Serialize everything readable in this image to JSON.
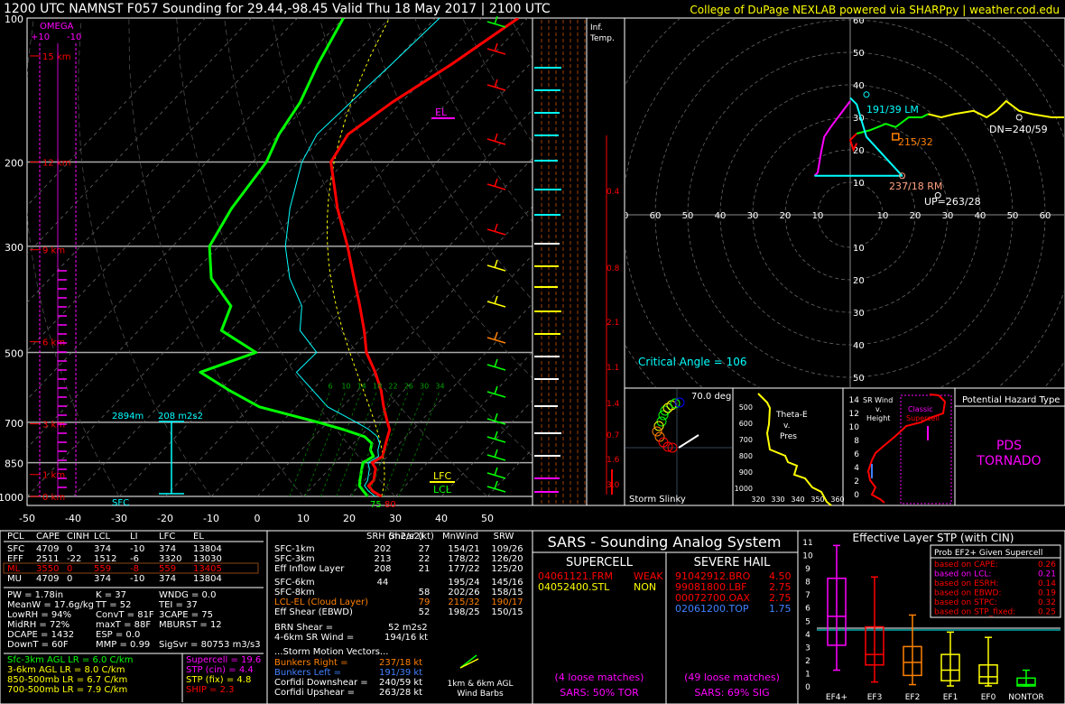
{
  "header": {
    "title": "1200 UTC NAMNST F057 Sounding for 29.44,-98.45 Valid  Thu 18 May 2017 | 2100 UTC",
    "credit": "College of DuPage NEXLAB powered via SHARPpy | weather.cod.edu"
  },
  "skewt": {
    "pressure_labels": [
      "100",
      "200",
      "300",
      "500",
      "700",
      "850",
      "1000"
    ],
    "temp_labels": [
      "-50",
      "-40",
      "-30",
      "-20",
      "-10",
      "0",
      "10",
      "20",
      "30",
      "40",
      "50"
    ],
    "height_labels": [
      "15 km",
      "12 km",
      "9 km",
      "6 km",
      "3 km",
      "1 km",
      "0 km"
    ],
    "omega_title": "OMEGA",
    "omega_plus": "+10",
    "omega_minus": "-10",
    "el_label": "EL",
    "lfc_label": "LFC",
    "lcl_label": "LCL",
    "sfc_label": "SFC",
    "eff_inflow_bottom": "2894m",
    "eff_inflow_srh": "208 m2s2",
    "sfc_temp": "80",
    "sfc_dew": "75",
    "mixing_ratios": [
      "6",
      "10",
      "14",
      "18",
      "22",
      "26",
      "30",
      "34"
    ]
  },
  "inf_temp": {
    "title1": "Inf.",
    "title2": "Temp.",
    "values": [
      "0.4",
      "0.8",
      "2.1",
      "1.1",
      "1.4",
      "0.7",
      "1.6",
      "3.0"
    ]
  },
  "hodograph": {
    "rings_y": [
      "60",
      "50",
      "40",
      "30",
      "20",
      "10"
    ],
    "rings_x": [
      "70",
      "60",
      "50",
      "40",
      "30",
      "20",
      "10",
      "10",
      "20",
      "30",
      "40",
      "50",
      "60",
      "70"
    ],
    "rings_y_low": [
      "10",
      "20",
      "30",
      "40",
      "50",
      "60"
    ],
    "lm_label": "191/39 LM",
    "rm_label": "237/18 RM",
    "dn_label": "DN=240/59",
    "up_label": "UP=263/28",
    "mean_label": "215/32",
    "critical_angle": "Critical Angle = 106"
  },
  "slinky": {
    "title": "Storm Slinky",
    "angle": "70.0 deg"
  },
  "thetae": {
    "title1": "Theta-E",
    "title2": "v.",
    "title3": "Pres",
    "pres": [
      "500",
      "600",
      "700",
      "800",
      "900",
      "1000"
    ],
    "x": [
      "320",
      "330",
      "340",
      "350",
      "360"
    ]
  },
  "srwind": {
    "title1": "SR Wind",
    "title2": "v.",
    "title3": "Height",
    "classic1": "Classic",
    "classic2": "Supercell",
    "heights": [
      "14",
      "12",
      "10",
      "8",
      "6",
      "4",
      "2",
      "0"
    ]
  },
  "hazard": {
    "title": "Potential Hazard Type",
    "value1": "PDS",
    "value2": "TORNADO"
  },
  "thermo": {
    "headers": [
      "PCL",
      "CAPE",
      "CINH",
      "LCL",
      "LI",
      "LFC",
      "EL"
    ],
    "rows": [
      [
        "SFC",
        "4709",
        "0",
        "374",
        "-10",
        "374",
        "13804"
      ],
      [
        "EFF",
        "2511",
        "-22",
        "1512",
        "-6",
        "3320",
        "13030"
      ],
      [
        "ML",
        "3550",
        "0",
        "559",
        "-8",
        "559",
        "13405"
      ],
      [
        "MU",
        "4709",
        "0",
        "374",
        "-10",
        "374",
        "13804"
      ]
    ],
    "left_stats": [
      "PW = 1.78in",
      "MeanW = 17.6g/kg",
      "LowRH = 94%",
      "MidRH = 72%",
      "DCAPE = 1432",
      "DownT = 60F"
    ],
    "mid_stats": [
      "K = 37",
      "TT = 52",
      "ConvT = 81F",
      "maxT = 88F",
      "ESP = 0.0",
      "MMP = 0.99"
    ],
    "right_stats": [
      "WNDG = 0.0",
      "TEI = 37",
      "3CAPE = 75",
      "MBURST = 12",
      "",
      "SigSvr = 80753 m3/s3"
    ],
    "lapse": [
      "Sfc-3km AGL LR = 6.0 C/km",
      "3-6km AGL LR = 8.0 C/km",
      "850-500mb LR = 6.7 C/km",
      "700-500mb LR = 7.9 C/km"
    ],
    "indices": [
      "Supercell = 19.6",
      "STP (cin) = 4.4",
      "STP (fix) = 4.8",
      "SHIP = 2.3"
    ]
  },
  "kinematic": {
    "headers": [
      "SRH (m2/s2)",
      "Shear (kt)",
      "MnWind",
      "SRW"
    ],
    "rows": [
      [
        "SFC-1km",
        "202",
        "27",
        "154/21",
        "109/26"
      ],
      [
        "SFC-3km",
        "213",
        "22",
        "178/22",
        "126/20"
      ],
      [
        "Eff Inflow Layer",
        "208",
        "21",
        "177/22",
        "125/20"
      ],
      [
        "SFC-6km",
        "44",
        "",
        "195/24",
        "145/16"
      ],
      [
        "SFC-8km",
        "",
        "58",
        "202/26",
        "158/15"
      ],
      [
        "LCL-EL (Cloud Layer)",
        "",
        "79",
        "215/32",
        "190/17"
      ],
      [
        "Eff Shear (EBWD)",
        "",
        "52",
        "198/25",
        "150/15"
      ]
    ],
    "brn": [
      "BRN Shear =",
      "52 m2s2"
    ],
    "srwind": [
      "4-6km SR Wind =",
      "194/16 kt"
    ],
    "storm_title": "...Storm Motion Vectors...",
    "motions": [
      [
        "Bunkers Right =",
        "237/18 kt"
      ],
      [
        "Bunkers Left =",
        "191/39 kt"
      ],
      [
        "Corfidi Downshear =",
        "240/59 kt"
      ],
      [
        "Corfidi Upshear =",
        "263/28 kt"
      ]
    ],
    "barbs_label1": "1km & 6km AGL",
    "barbs_label2": "Wind Barbs"
  },
  "sars": {
    "title": "SARS - Sounding Analog System",
    "supercell_title": "SUPERCELL",
    "hail_title": "SEVERE HAIL",
    "supercell": [
      [
        "04061121.FRM",
        "WEAK"
      ],
      [
        "04052400.STL",
        "NON"
      ]
    ],
    "hail": [
      [
        "91042912.BRO",
        "4.50"
      ],
      [
        "99081800.LBF",
        "2.75"
      ],
      [
        "00072700.OAX",
        "2.75"
      ],
      [
        "02061200.TOP",
        "1.75"
      ]
    ],
    "supercell_matches": "(4 loose matches)",
    "hail_matches": "(49 loose matches)",
    "supercell_pct": "SARS: 50% TOR",
    "hail_pct": "SARS: 69% SIG"
  },
  "stp": {
    "title": "Effective Layer STP (with CIN)",
    "box_title": "Prob EF2+ Given Supercell",
    "probs": [
      [
        "based on CAPE:",
        "0.26"
      ],
      [
        "based on LCL:",
        "0.21"
      ],
      [
        "based on ESRH:",
        "0.14"
      ],
      [
        "based on EBWD:",
        "0.19"
      ],
      [
        "based on STPC:",
        "0.32"
      ],
      [
        "based on STP_fixed:",
        "0.25"
      ]
    ],
    "y_labels": [
      "11",
      "10",
      "9",
      "8",
      "7",
      "6",
      "5",
      "4",
      "3",
      "2",
      "1",
      "0"
    ],
    "categories": [
      "EF4+",
      "EF3",
      "EF2",
      "EF1",
      "EF0",
      "NONTOR"
    ],
    "value_line": 4.4
  },
  "chart_data": [
    {
      "type": "line",
      "title": "Skew-T",
      "ylabel": "Pressure (mb)",
      "xlabel": "Temperature (C)",
      "ylim": [
        1000,
        100
      ],
      "xlim": [
        -50,
        50
      ],
      "series": [
        {
          "name": "temperature",
          "pressure": [
            1000,
            975,
            950,
            925,
            900,
            875,
            850,
            825,
            800,
            775,
            750,
            725,
            700,
            650,
            600,
            550,
            500,
            450,
            400,
            350,
            300,
            250,
            200,
            175,
            150,
            125,
            100
          ],
          "values": [
            27,
            24,
            22,
            22,
            21,
            20,
            18,
            19,
            18,
            17,
            16,
            15,
            13,
            9,
            5,
            0,
            -6,
            -11,
            -17,
            -24,
            -32,
            -42,
            -53,
            -55,
            -52,
            -47,
            -42
          ]
        },
        {
          "name": "dewpoint",
          "pressure": [
            1000,
            975,
            950,
            925,
            900,
            875,
            850,
            825,
            800,
            775,
            750,
            725,
            700,
            650,
            600,
            550,
            500,
            450,
            400,
            350,
            300,
            250,
            200,
            175,
            150,
            125,
            100
          ],
          "values": [
            24,
            22,
            20,
            19,
            18,
            17,
            16,
            17,
            15,
            14,
            11,
            5,
            -2,
            -18,
            -28,
            -38,
            -30,
            -42,
            -45,
            -55,
            -62,
            -65,
            -67,
            -70,
            -72,
            -76,
            -80
          ]
        }
      ]
    },
    {
      "type": "bar",
      "title": "Effective Layer STP (with CIN)",
      "categories": [
        "EF4+",
        "EF3",
        "EF2",
        "EF1",
        "EF0",
        "NONTOR"
      ],
      "series": [
        {
          "name": "p10",
          "values": [
            1.2,
            0.3,
            0.1,
            0.0,
            0.0,
            0.0
          ]
        },
        {
          "name": "p25",
          "values": [
            3.1,
            1.6,
            0.8,
            0.4,
            0.2,
            0.0
          ]
        },
        {
          "name": "median",
          "values": [
            5.3,
            2.4,
            1.8,
            1.2,
            0.7,
            0.1
          ]
        },
        {
          "name": "p75",
          "values": [
            8.2,
            4.5,
            3.0,
            2.4,
            1.6,
            0.6
          ]
        },
        {
          "name": "p90",
          "values": [
            10.7,
            8.3,
            5.4,
            4.1,
            3.7,
            1.2
          ]
        }
      ],
      "ylim": [
        0,
        11
      ]
    }
  ],
  "colors": {
    "temp": "#ff0000",
    "dew": "#00ff00",
    "wetbulb": "#00ffff",
    "parcel": "#ffff00",
    "magenta": "#ff00ff",
    "cyan": "#00ffff",
    "yellow": "#ffff00",
    "orange": "#ff8000"
  }
}
